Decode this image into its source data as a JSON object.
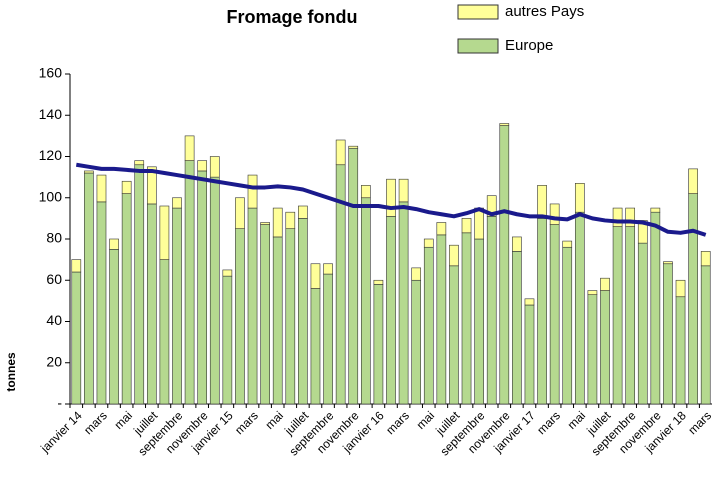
{
  "chart_data": {
    "type": "stacked-bar-line",
    "title": "Fromage fondu",
    "y_label": "tonnes",
    "categories": [
      "janvier 14",
      null,
      "mars",
      null,
      "mai",
      null,
      "juillet",
      null,
      "septembre",
      null,
      "novembre",
      null,
      "janvier 15",
      null,
      "mars",
      null,
      "mai",
      null,
      "juillet",
      null,
      "septembre",
      null,
      "novembre",
      null,
      "janvier 16",
      null,
      "mars",
      null,
      "mai",
      null,
      "juillet",
      null,
      "septembre",
      null,
      "novembre",
      null,
      "janvier 17",
      null,
      "mars",
      null,
      "mai",
      null,
      "juillet",
      null,
      "septembre",
      null,
      "novembre",
      null,
      "janvier 18",
      null,
      "mars"
    ],
    "series": [
      {
        "name": "Europe",
        "color": "#b5d98f",
        "values": [
          64,
          112,
          98,
          75,
          102,
          116,
          97,
          70,
          95,
          118,
          113,
          110,
          62,
          85,
          95,
          87,
          81,
          85,
          90,
          56,
          63,
          116,
          124,
          100,
          58,
          91,
          98,
          60,
          76,
          82,
          67,
          83,
          80,
          91,
          135,
          74,
          48,
          90,
          87,
          76,
          93,
          53,
          55,
          86,
          86,
          78,
          93,
          68,
          52,
          102,
          67
        ]
      },
      {
        "name": "autres Pays",
        "color": "#ffff99",
        "values": [
          6,
          1,
          13,
          5,
          6,
          2,
          18,
          26,
          5,
          12,
          5,
          10,
          3,
          15,
          16,
          1,
          14,
          8,
          6,
          12,
          5,
          12,
          1,
          6,
          2,
          18,
          11,
          6,
          4,
          6,
          10,
          7,
          15,
          10,
          1,
          7,
          3,
          16,
          10,
          3,
          14,
          2,
          6,
          9,
          9,
          11,
          2,
          1,
          8,
          12,
          7
        ]
      }
    ],
    "trend": {
      "color": "#1a1a8c",
      "values": [
        116,
        115,
        114,
        114,
        113.5,
        113,
        113,
        112,
        111,
        110,
        109,
        108,
        107,
        106,
        105,
        105,
        105.5,
        105,
        104,
        102,
        100,
        98,
        96,
        96,
        96,
        95,
        95.5,
        94.5,
        93,
        92,
        91,
        92.5,
        94.5,
        92,
        93.5,
        92,
        91,
        91,
        90,
        89.5,
        92,
        90,
        89,
        88.5,
        88.5,
        88,
        86.5,
        83.5,
        83,
        84,
        82
      ]
    },
    "ylim": [
      0,
      160
    ],
    "yticks": [
      {
        "value": 0,
        "label": "-"
      },
      20,
      40,
      60,
      80,
      100,
      120,
      140,
      160
    ]
  }
}
